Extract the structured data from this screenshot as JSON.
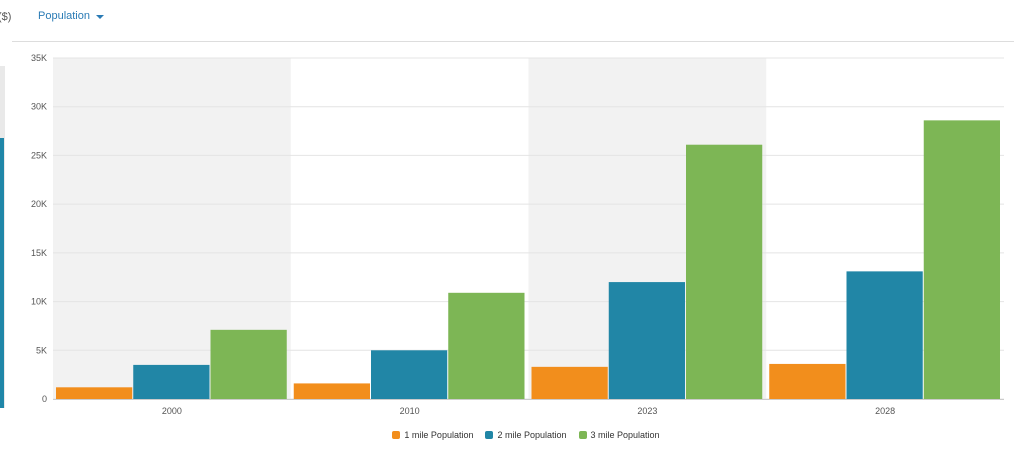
{
  "left_fragment": {
    "text": "($)"
  },
  "metric_selector": {
    "label": "Population"
  },
  "chart_data": {
    "type": "bar",
    "categories": [
      "2000",
      "2010",
      "2023",
      "2028"
    ],
    "series": [
      {
        "name": "1 mile Population",
        "color": "#f28e1c",
        "values": [
          1200,
          1600,
          3300,
          3600
        ]
      },
      {
        "name": "2 mile Population",
        "color": "#2186a6",
        "values": [
          3500,
          5000,
          12000,
          13100
        ]
      },
      {
        "name": "3 mile Population",
        "color": "#7db655",
        "values": [
          7100,
          10900,
          26100,
          28600
        ]
      }
    ],
    "ylim": [
      0,
      35000
    ],
    "yticks": [
      0,
      5000,
      10000,
      15000,
      20000,
      25000,
      30000,
      35000
    ],
    "ytick_labels": [
      "0",
      "5K",
      "10K",
      "15K",
      "20K",
      "25K",
      "30K",
      "35K"
    ],
    "xlabel": "",
    "ylabel": "",
    "grid": true,
    "alternating_band_color": "#f2f2f2",
    "legend_position": "bottom-center"
  }
}
